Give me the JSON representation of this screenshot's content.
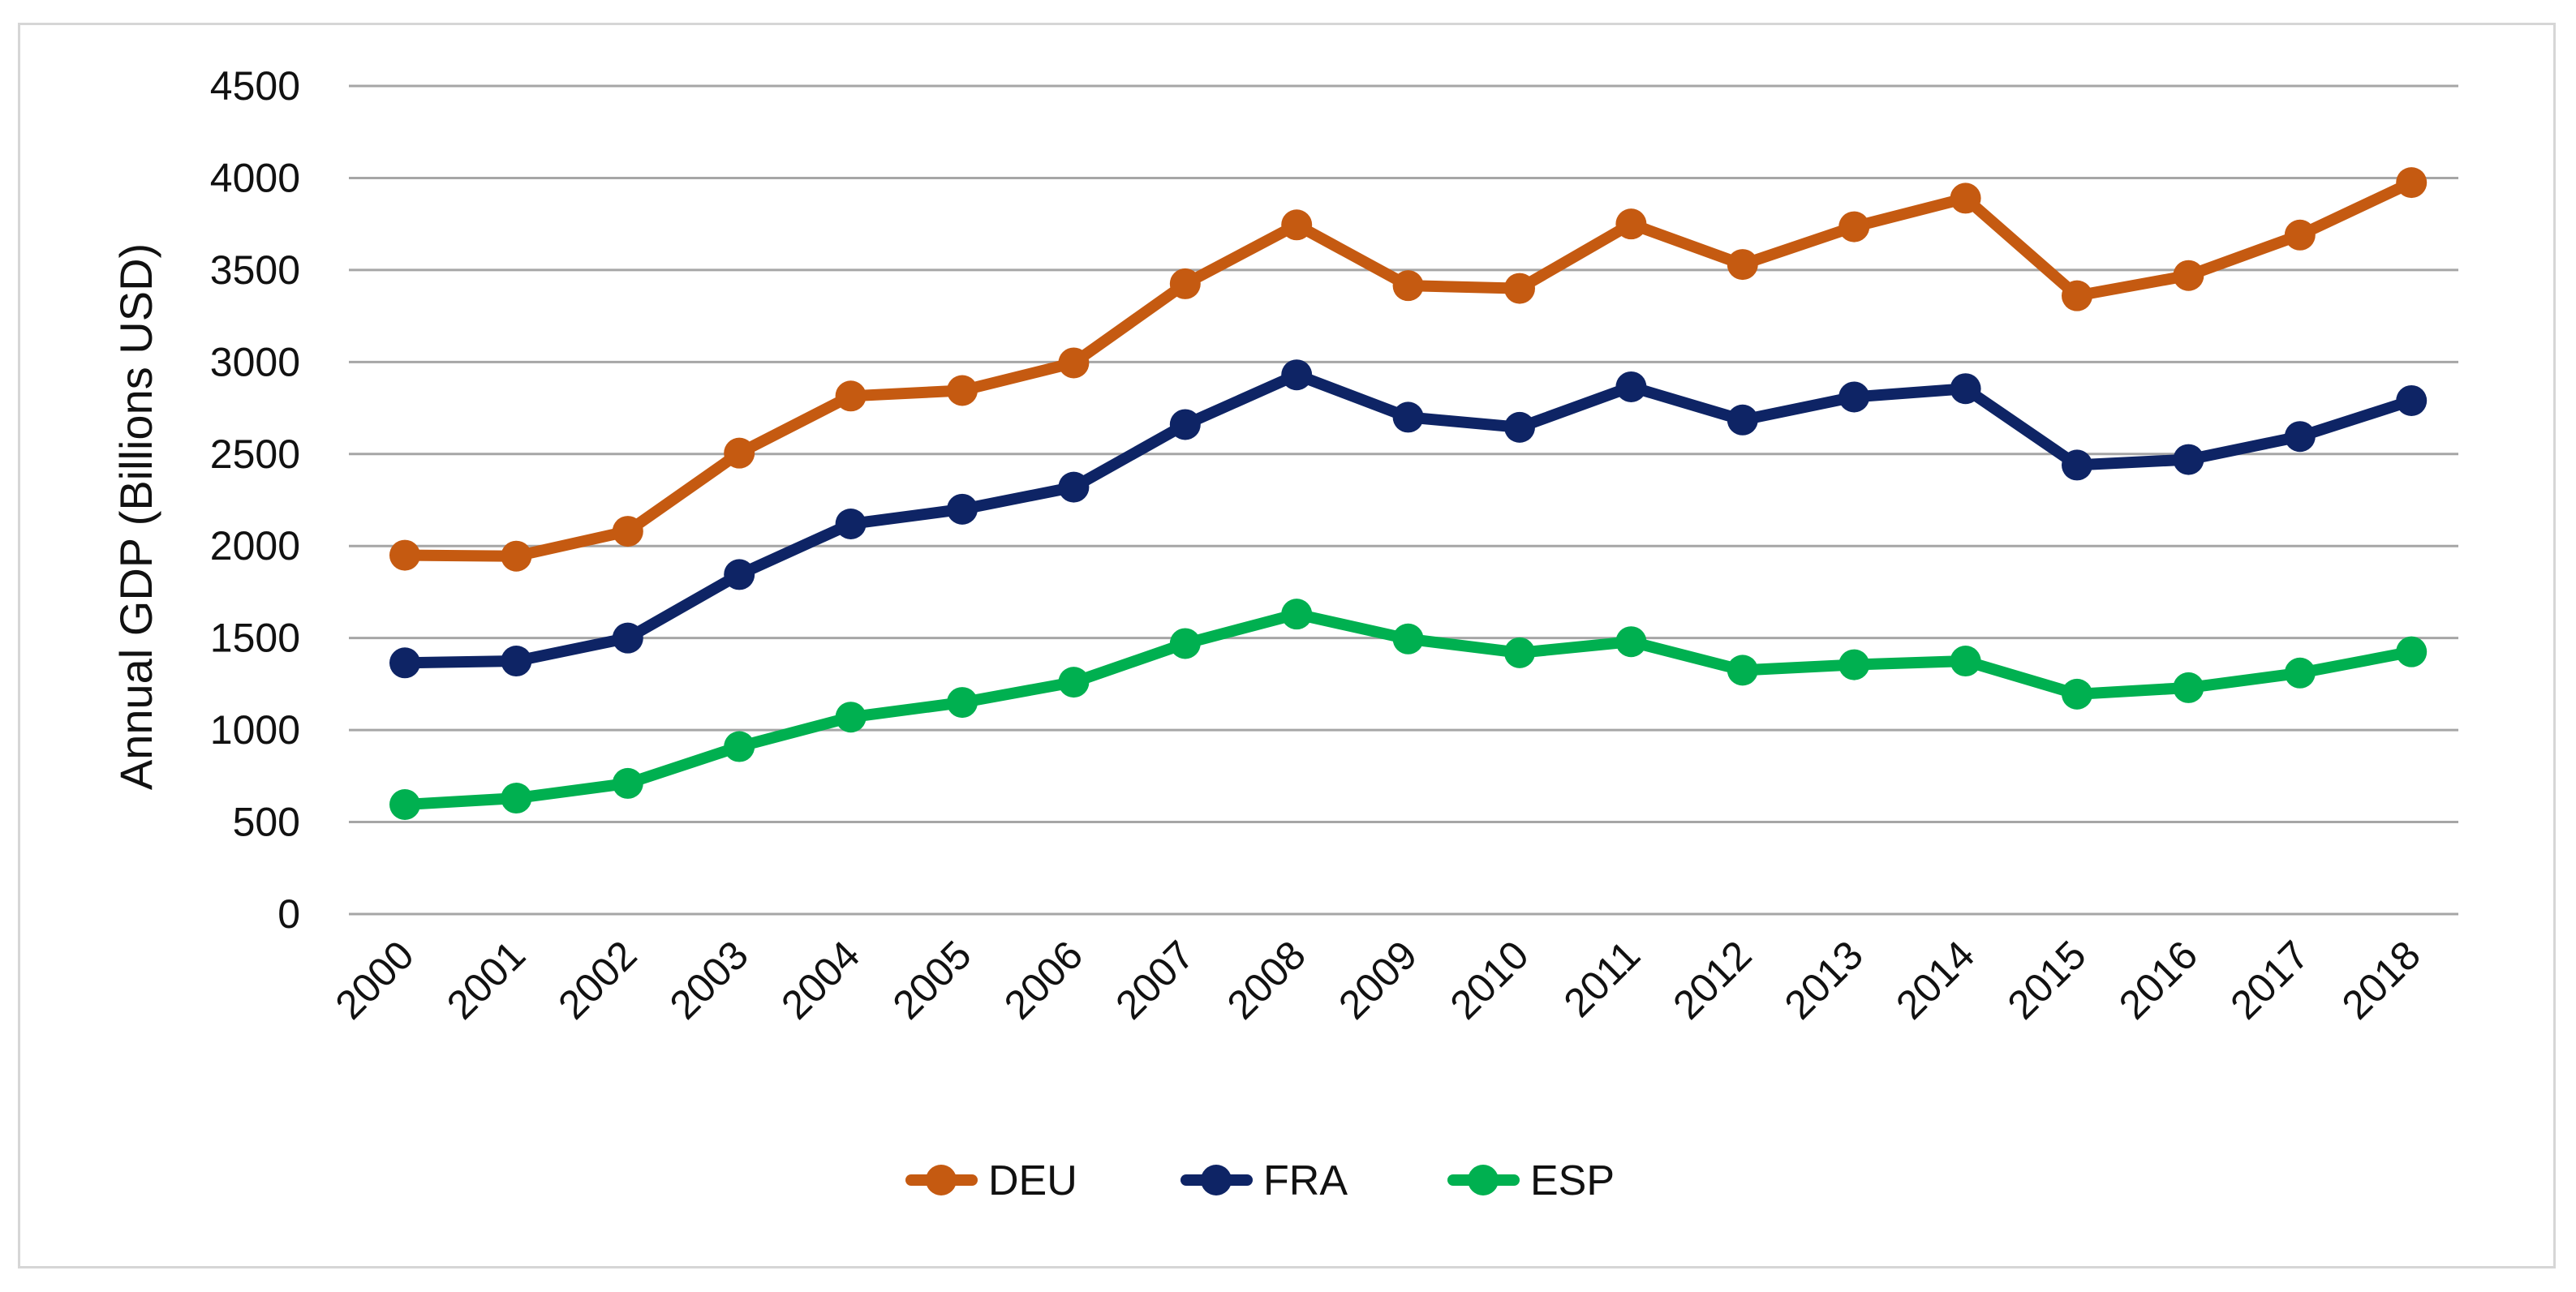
{
  "chart_data": {
    "type": "line",
    "title": "",
    "xlabel": "",
    "ylabel": "Annual GDP (Billions USD)",
    "ylim": [
      0,
      4500
    ],
    "yticks": [
      0,
      500,
      1000,
      1500,
      2000,
      2500,
      3000,
      3500,
      4000,
      4500
    ],
    "grid": true,
    "legend_position": "bottom-center",
    "categories": [
      "2000",
      "2001",
      "2002",
      "2003",
      "2004",
      "2005",
      "2006",
      "2007",
      "2008",
      "2009",
      "2010",
      "2011",
      "2012",
      "2013",
      "2014",
      "2015",
      "2016",
      "2017",
      "2018"
    ],
    "series": [
      {
        "name": "DEU",
        "color": "#C55A11",
        "values": [
          1950,
          1945,
          2080,
          2505,
          2815,
          2845,
          2995,
          3425,
          3745,
          3415,
          3400,
          3750,
          3530,
          3735,
          3890,
          3360,
          3470,
          3690,
          3975
        ]
      },
      {
        "name": "FRA",
        "color": "#0E2465",
        "values": [
          1365,
          1375,
          1500,
          1845,
          2120,
          2200,
          2320,
          2660,
          2930,
          2700,
          2645,
          2865,
          2685,
          2810,
          2855,
          2440,
          2470,
          2595,
          2790
        ]
      },
      {
        "name": "ESP",
        "color": "#00B050",
        "values": [
          595,
          630,
          710,
          910,
          1070,
          1150,
          1260,
          1470,
          1630,
          1495,
          1420,
          1480,
          1325,
          1355,
          1375,
          1195,
          1230,
          1310,
          1425
        ]
      }
    ]
  }
}
